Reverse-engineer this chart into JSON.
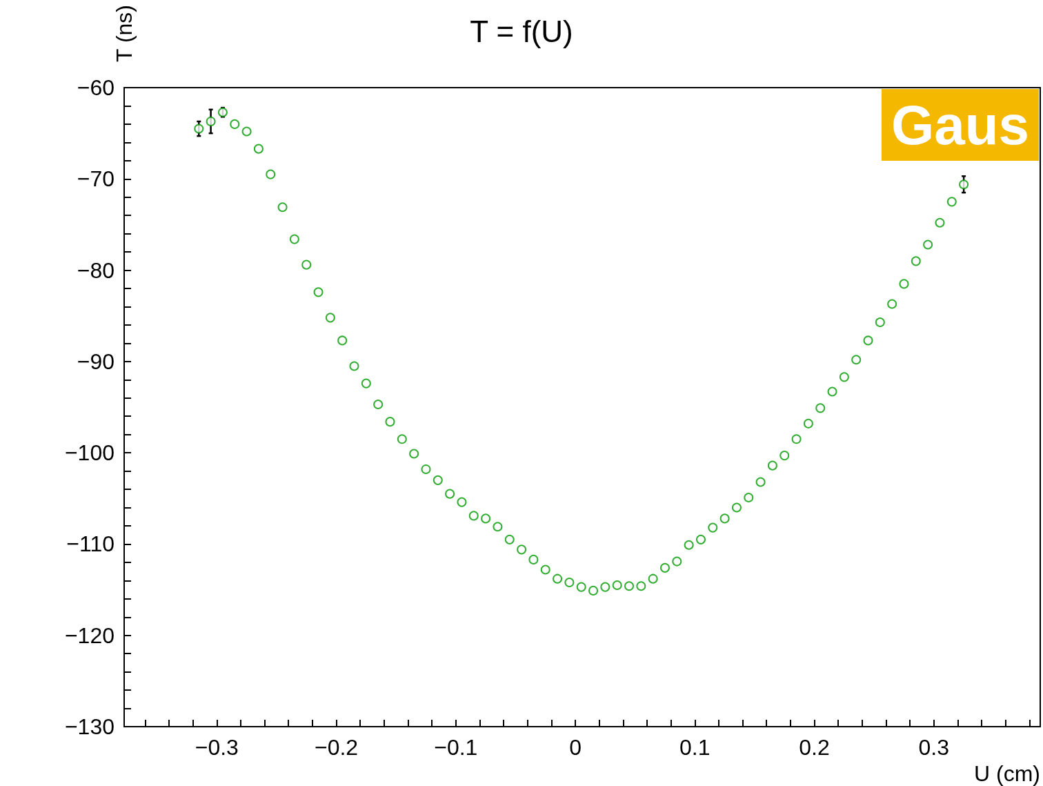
{
  "chart_data": {
    "type": "scatter",
    "title": "T = f(U)",
    "xlabel": "U (cm)",
    "ylabel": "T (ns)",
    "annotations": [
      "Gaus"
    ],
    "marker": "circle",
    "grid": false,
    "xlim": [
      -0.3775,
      0.389
    ],
    "ylim": [
      -130,
      -60
    ],
    "xticks": [
      {
        "value": -0.36,
        "label": null
      },
      {
        "value": -0.34,
        "label": null
      },
      {
        "value": -0.32,
        "label": null
      },
      {
        "value": -0.3,
        "label": "−0.3"
      },
      {
        "value": -0.28,
        "label": null
      },
      {
        "value": -0.26,
        "label": null
      },
      {
        "value": -0.24,
        "label": null
      },
      {
        "value": -0.22,
        "label": null
      },
      {
        "value": -0.2,
        "label": "−0.2"
      },
      {
        "value": -0.18,
        "label": null
      },
      {
        "value": -0.16,
        "label": null
      },
      {
        "value": -0.14,
        "label": null
      },
      {
        "value": -0.12,
        "label": null
      },
      {
        "value": -0.1,
        "label": "−0.1"
      },
      {
        "value": -0.08,
        "label": null
      },
      {
        "value": -0.06,
        "label": null
      },
      {
        "value": -0.04,
        "label": null
      },
      {
        "value": -0.02,
        "label": null
      },
      {
        "value": 0,
        "label": "0"
      },
      {
        "value": 0.02,
        "label": null
      },
      {
        "value": 0.04,
        "label": null
      },
      {
        "value": 0.06,
        "label": null
      },
      {
        "value": 0.08,
        "label": null
      },
      {
        "value": 0.1,
        "label": "0.1"
      },
      {
        "value": 0.12,
        "label": null
      },
      {
        "value": 0.14,
        "label": null
      },
      {
        "value": 0.16,
        "label": null
      },
      {
        "value": 0.18,
        "label": null
      },
      {
        "value": 0.2,
        "label": "0.2"
      },
      {
        "value": 0.22,
        "label": null
      },
      {
        "value": 0.24,
        "label": null
      },
      {
        "value": 0.26,
        "label": null
      },
      {
        "value": 0.28,
        "label": null
      },
      {
        "value": 0.3,
        "label": "0.3"
      },
      {
        "value": 0.32,
        "label": null
      },
      {
        "value": 0.34,
        "label": null
      },
      {
        "value": 0.36,
        "label": null
      },
      {
        "value": 0.38,
        "label": null
      }
    ],
    "yticks": [
      {
        "value": -130,
        "label": "−130"
      },
      {
        "value": -128,
        "label": null
      },
      {
        "value": -126,
        "label": null
      },
      {
        "value": -124,
        "label": null
      },
      {
        "value": -122,
        "label": null
      },
      {
        "value": -120,
        "label": "−120"
      },
      {
        "value": -118,
        "label": null
      },
      {
        "value": -116,
        "label": null
      },
      {
        "value": -114,
        "label": null
      },
      {
        "value": -112,
        "label": null
      },
      {
        "value": -110,
        "label": "−110"
      },
      {
        "value": -108,
        "label": null
      },
      {
        "value": -106,
        "label": null
      },
      {
        "value": -104,
        "label": null
      },
      {
        "value": -102,
        "label": null
      },
      {
        "value": -100,
        "label": "−100"
      },
      {
        "value": -98,
        "label": null
      },
      {
        "value": -96,
        "label": null
      },
      {
        "value": -94,
        "label": null
      },
      {
        "value": -92,
        "label": null
      },
      {
        "value": -90,
        "label": "−90"
      },
      {
        "value": -88,
        "label": null
      },
      {
        "value": -86,
        "label": null
      },
      {
        "value": -84,
        "label": null
      },
      {
        "value": -82,
        "label": null
      },
      {
        "value": -80,
        "label": "−80"
      },
      {
        "value": -78,
        "label": null
      },
      {
        "value": -76,
        "label": null
      },
      {
        "value": -74,
        "label": null
      },
      {
        "value": -72,
        "label": null
      },
      {
        "value": -70,
        "label": "−70"
      },
      {
        "value": -68,
        "label": null
      },
      {
        "value": -66,
        "label": null
      },
      {
        "value": -64,
        "label": null
      },
      {
        "value": -62,
        "label": null
      },
      {
        "value": -60,
        "label": "−60"
      }
    ],
    "x": [
      -0.315,
      -0.305,
      -0.295,
      -0.285,
      -0.275,
      -0.265,
      -0.255,
      -0.245,
      -0.235,
      -0.225,
      -0.215,
      -0.205,
      -0.195,
      -0.185,
      -0.175,
      -0.165,
      -0.155,
      -0.145,
      -0.135,
      -0.125,
      -0.115,
      -0.105,
      -0.095,
      -0.085,
      -0.075,
      -0.065,
      -0.055,
      -0.045,
      -0.035,
      -0.025,
      -0.015,
      -0.005,
      0.005,
      0.015,
      0.025,
      0.035,
      0.045,
      0.055,
      0.065,
      0.075,
      0.085,
      0.095,
      0.105,
      0.115,
      0.125,
      0.135,
      0.145,
      0.155,
      0.165,
      0.175,
      0.185,
      0.195,
      0.205,
      0.215,
      0.225,
      0.235,
      0.245,
      0.255,
      0.265,
      0.275,
      0.285,
      0.295,
      0.305,
      0.315,
      0.325
    ],
    "series": [
      {
        "color": "#009900",
        "values": [
          -64.5,
          -63.7,
          -62.7,
          -64.0,
          -64.8,
          -66.7,
          -69.5,
          -73.1,
          -76.6,
          -79.4,
          -82.4,
          -85.2,
          -87.7,
          -90.5,
          -92.4,
          -94.7,
          -96.6,
          -98.5,
          -100.1,
          -101.8,
          -103.0,
          -104.5,
          -105.4,
          -106.9,
          -107.2,
          -108.1,
          -109.5,
          -110.6,
          -111.7,
          -112.8,
          -113.8,
          -114.2,
          -114.7,
          -115.1,
          -114.7,
          -114.5,
          -114.6,
          -114.6,
          -113.8,
          -112.6,
          -111.9,
          -110.1,
          -109.5,
          -108.2,
          -107.2,
          -106.0,
          -104.9,
          -103.2,
          -101.4,
          -100.3,
          -98.5,
          -96.8,
          -95.1,
          -93.3,
          -91.7,
          -89.8,
          -87.7,
          -85.7,
          -83.7,
          -81.5,
          -79.0,
          -77.2,
          -74.8,
          -72.5,
          -70.6
        ],
        "errors": [
          0.8,
          1.3,
          0.5,
          null,
          null,
          null,
          null,
          null,
          null,
          null,
          null,
          null,
          null,
          null,
          null,
          null,
          null,
          null,
          null,
          null,
          null,
          null,
          null,
          null,
          null,
          null,
          null,
          null,
          null,
          null,
          null,
          null,
          null,
          null,
          null,
          null,
          null,
          null,
          null,
          null,
          null,
          null,
          null,
          null,
          null,
          null,
          null,
          null,
          null,
          null,
          null,
          null,
          null,
          null,
          null,
          null,
          null,
          null,
          null,
          null,
          null,
          null,
          null,
          null,
          0.9
        ]
      }
    ]
  }
}
